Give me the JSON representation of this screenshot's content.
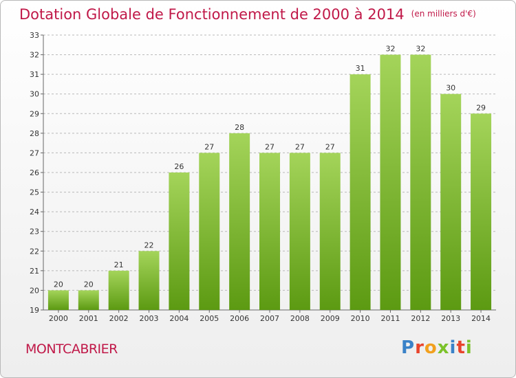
{
  "title": "Dotation Globale de Fonctionnement de 2000 à 2014",
  "subtitle": "(en milliers d'€)",
  "commune": "MONTCABRIER",
  "logo": {
    "text": "Proxiti",
    "colors": [
      "#3a82c8",
      "#e8442c",
      "#f2a01e",
      "#7cc22a",
      "#3a82c8",
      "#e8442c",
      "#7cc22a"
    ]
  },
  "colors": {
    "title": "#c01848",
    "bar_top": "#a4d45a",
    "bar_bottom": "#5c9a12",
    "grid": "#b8b8b8"
  },
  "chart_data": {
    "type": "bar",
    "title": "Dotation Globale de Fonctionnement de 2000 à 2014",
    "subtitle": "(en milliers d'€)",
    "xlabel": "",
    "ylabel": "",
    "categories": [
      "2000",
      "2001",
      "2002",
      "2003",
      "2004",
      "2005",
      "2006",
      "2007",
      "2008",
      "2009",
      "2010",
      "2011",
      "2012",
      "2013",
      "2014"
    ],
    "values": [
      20,
      20,
      21,
      22,
      26,
      27,
      28,
      27,
      27,
      27,
      31,
      32,
      32,
      30,
      29
    ],
    "ylim": [
      19,
      33
    ],
    "yticks": [
      19,
      20,
      21,
      22,
      23,
      24,
      25,
      26,
      27,
      28,
      29,
      30,
      31,
      32,
      33
    ],
    "grid": true,
    "grid_style": "dashed horizontal",
    "data_labels": true
  }
}
